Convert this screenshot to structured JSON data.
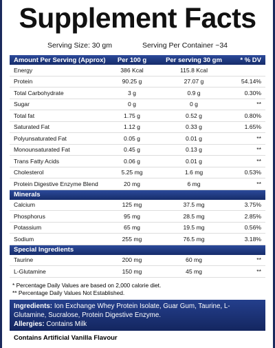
{
  "header": {
    "title": "Supplement Facts",
    "serving_size": "Serving Size: 30 gm",
    "servings_per_container": "Serving Per Container ~34"
  },
  "sections": [
    {
      "columns": [
        "Amount Per Serving (Approx)",
        "Per 100 g",
        "Per serving 30 gm",
        "* % DV"
      ],
      "rows": [
        [
          "Energy",
          "386 Kcal",
          "115.8 Kcal"
        ],
        [
          "Protein",
          "90.25 g",
          "27.07 g",
          "54.14%"
        ],
        [
          "Total Carbohydrate",
          "3 g",
          "0.9 g",
          "0.30%"
        ],
        [
          "Sugar",
          "0 g",
          "0 g",
          "**"
        ],
        [
          "Total fat",
          "1.75 g",
          "0.52 g",
          "0.80%"
        ],
        [
          "Saturated Fat",
          "1.12 g",
          "0.33 g",
          "1.65%"
        ],
        [
          "Polyunsaturated Fat",
          "0.05 g",
          "0.01 g",
          "**"
        ],
        [
          "Monounsaturated Fat",
          "0.45 g",
          "0.13 g",
          "**"
        ],
        [
          "Trans Fatty Acids",
          "0.06 g",
          "0.01 g",
          "**"
        ],
        [
          "Cholesterol",
          "5.25 mg",
          "1.6 mg",
          "0.53%"
        ],
        [
          "Protein Digestive Enzyme Blend",
          "20 mg",
          "6 mg",
          "**"
        ]
      ]
    },
    {
      "title": "Minerals",
      "rows": [
        [
          "Calcium",
          "125 mg",
          "37.5 mg",
          "3.75%"
        ],
        [
          "Phosphorus",
          "95 mg",
          "28.5 mg",
          "2.85%"
        ],
        [
          "Potassium",
          "65 mg",
          "19.5 mg",
          "0.56%"
        ],
        [
          "Sodium",
          "255 mg",
          "76.5 mg",
          "3.18%"
        ]
      ]
    },
    {
      "title": "Special Ingredients",
      "rows": [
        [
          "Taurine",
          "200 mg",
          "60 mg",
          "**"
        ],
        [
          "L-Glutamine",
          "150 mg",
          "45 mg",
          "**"
        ]
      ]
    }
  ],
  "footnotes": [
    "* Percentage Daily Values are based on 2,000 calorie diet.",
    "** Percentage Daily Values Not Established."
  ],
  "ingredients": {
    "label": "Ingredients:",
    "text": "Ion Exchange Whey Protein Isolate, Guar Gum, Taurine, L-Glutamine, Sucralose, Protein Digestive Enzyme."
  },
  "allergies": {
    "label": "Allergies:",
    "text": "Contains Milk"
  },
  "flavour": "Contains Artificial Vanilla Flavour"
}
